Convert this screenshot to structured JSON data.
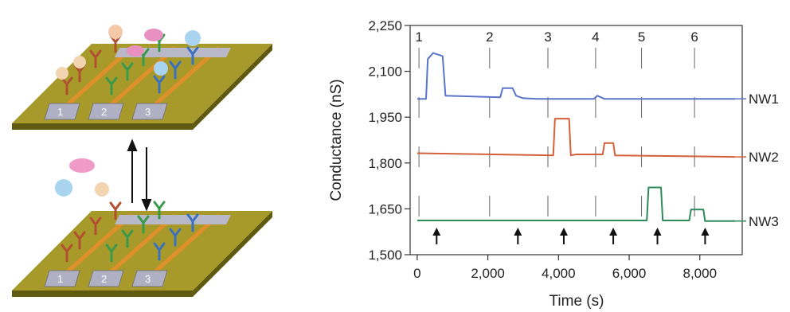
{
  "chart_data": {
    "type": "line",
    "title": "",
    "xlabel": "Time (s)",
    "ylabel": "Conductance (nS)",
    "xlim": [
      -200,
      9200
    ],
    "ylim": [
      1500,
      2250
    ],
    "xticks": [
      0,
      2000,
      4000,
      6000,
      8000
    ],
    "xtick_labels": [
      "0",
      "2,000",
      "4,000",
      "6,000",
      "8,000"
    ],
    "yticks": [
      1500,
      1650,
      1800,
      1950,
      2100,
      2250
    ],
    "ytick_labels": [
      "1,500",
      "1,650",
      "1,800",
      "1,950",
      "2,100",
      "2,250"
    ],
    "grid": false,
    "events": [
      {
        "label": "1",
        "x": 50
      },
      {
        "label": "2",
        "x": 2050
      },
      {
        "label": "3",
        "x": 3700
      },
      {
        "label": "4",
        "x": 5050
      },
      {
        "label": "5",
        "x": 6350
      },
      {
        "label": "6",
        "x": 7850
      }
    ],
    "arrows_x": [
      550,
      2850,
      4150,
      5550,
      6800,
      8150
    ],
    "series": [
      {
        "name": "NW1",
        "color": "#5a74c9",
        "x": [
          0,
          250,
          300,
          450,
          720,
          800,
          2350,
          2420,
          2700,
          2800,
          3000,
          3400,
          5000,
          5100,
          5300,
          9000
        ],
        "y": [
          2010,
          2010,
          2140,
          2160,
          2150,
          2020,
          2015,
          2045,
          2045,
          2020,
          2012,
          2010,
          2010,
          2020,
          2010,
          2010
        ]
      },
      {
        "name": "NW2",
        "color": "#d4603a",
        "x": [
          0,
          3850,
          3900,
          4300,
          4350,
          4500,
          5250,
          5300,
          5550,
          5600,
          9000
        ],
        "y": [
          1832,
          1825,
          1945,
          1945,
          1825,
          1828,
          1828,
          1865,
          1865,
          1825,
          1820
        ]
      },
      {
        "name": "NW3",
        "color": "#2f8a5a",
        "x": [
          0,
          6500,
          6550,
          6900,
          6950,
          7700,
          7750,
          8100,
          8150,
          9000
        ],
        "y": [
          1612,
          1612,
          1720,
          1720,
          1612,
          1612,
          1648,
          1648,
          1610,
          1610
        ]
      }
    ]
  },
  "schematic": {
    "top_chip_labels": [
      "1",
      "2",
      "3"
    ],
    "bottom_chip_labels": [
      "1",
      "2",
      "3"
    ]
  }
}
